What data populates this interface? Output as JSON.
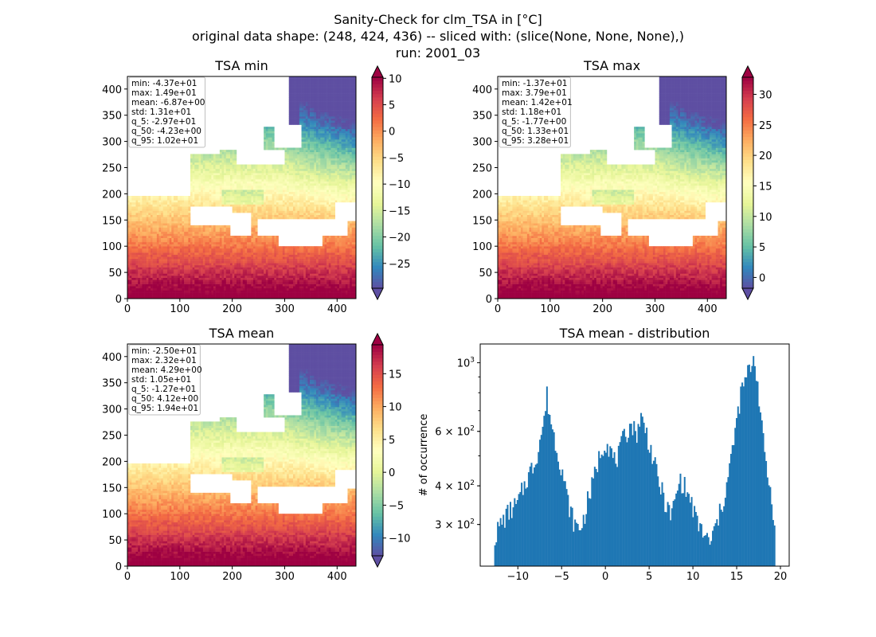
{
  "figure": {
    "title_lines": [
      "Sanity-Check for clm_TSA in [°C]",
      "original data shape: (248, 424, 436) -- sliced with: (slice(None, None, None),)",
      "run: 2001_03"
    ]
  },
  "colors": {
    "histogram_bar": "#1f77b4",
    "stats_box_edge": "#bfbfbf",
    "colormap_spectral_r": [
      "#5e4fa2",
      "#3288bd",
      "#66c2a5",
      "#abdda4",
      "#e6f598",
      "#ffffbf",
      "#fee08b",
      "#fdae61",
      "#f46d43",
      "#d53e4f",
      "#9e0142"
    ]
  },
  "chart_data": [
    {
      "type": "heatmap",
      "title": "TSA min",
      "xlim": [
        0,
        436
      ],
      "ylim": [
        0,
        424
      ],
      "xticks": [
        0,
        100,
        200,
        300,
        400
      ],
      "yticks": [
        0,
        50,
        100,
        150,
        200,
        250,
        300,
        350,
        400
      ],
      "colormap": "Spectral_r",
      "colorbar": {
        "range": [
          -29.7,
          10.2
        ],
        "ticks": [
          10,
          5,
          0,
          -5,
          -10,
          -15,
          -20,
          -25
        ],
        "extend": "both"
      },
      "stats_box": [
        "min: -4.37e+01",
        "max: 1.49e+01",
        "mean: -6.87e+00",
        "std: 1.31e+01",
        "q_5: -2.97e+01",
        "q_50: -4.23e+00",
        "q_95: 1.02e+01"
      ]
    },
    {
      "type": "heatmap",
      "title": "TSA max",
      "xlim": [
        0,
        436
      ],
      "ylim": [
        0,
        424
      ],
      "xticks": [
        0,
        100,
        200,
        300,
        400
      ],
      "yticks": [
        0,
        50,
        100,
        150,
        200,
        250,
        300,
        350,
        400
      ],
      "colormap": "Spectral_r",
      "colorbar": {
        "range": [
          -1.77,
          32.8
        ],
        "ticks": [
          30,
          25,
          20,
          15,
          10,
          5,
          0
        ],
        "extend": "both"
      },
      "stats_box": [
        "min: -1.37e+01",
        "max: 3.79e+01",
        "mean: 1.42e+01",
        "std: 1.18e+01",
        "q_5: -1.77e+00",
        "q_50: 1.33e+01",
        "q_95: 3.28e+01"
      ]
    },
    {
      "type": "heatmap",
      "title": "TSA mean",
      "xlim": [
        0,
        436
      ],
      "ylim": [
        0,
        424
      ],
      "xticks": [
        0,
        100,
        200,
        300,
        400
      ],
      "yticks": [
        0,
        50,
        100,
        150,
        200,
        250,
        300,
        350,
        400
      ],
      "colormap": "Spectral_r",
      "colorbar": {
        "range": [
          -12.7,
          19.4
        ],
        "ticks": [
          15,
          10,
          5,
          0,
          -5,
          -10
        ],
        "extend": "both"
      },
      "stats_box": [
        "min: -2.50e+01",
        "max: 2.32e+01",
        "mean: 4.29e+00",
        "std: 1.05e+01",
        "q_5: -1.27e+01",
        "q_50: 4.12e+00",
        "q_95: 1.94e+01"
      ]
    },
    {
      "type": "bar",
      "subtype": "histogram",
      "title": "TSA mean - distribution",
      "xlabel": "",
      "ylabel": "# of occurrence",
      "xlim": [
        -14.3,
        21.0
      ],
      "ylim": [
        220,
        1150
      ],
      "yscale": "log",
      "xticks": [
        -10,
        -5,
        0,
        5,
        10,
        15,
        20
      ],
      "yticks": [
        {
          "value": 300,
          "label": "3 × 10²",
          "base": "3 × 10",
          "exp": "2"
        },
        {
          "value": 400,
          "label": "4 × 10²",
          "base": "4 × 10",
          "exp": "2"
        },
        {
          "value": 600,
          "label": "6 × 10²",
          "base": "6 × 10",
          "exp": "2"
        },
        {
          "value": 1000,
          "label": "10³",
          "base": "10",
          "exp": "3"
        }
      ],
      "bin_range": [
        -12.7,
        19.4
      ],
      "anchor_x": [
        -12.7,
        -12.0,
        -11.0,
        -10.0,
        -9.0,
        -8.0,
        -7.5,
        -7.0,
        -6.7,
        -6.4,
        -6.0,
        -5.5,
        -5.0,
        -4.5,
        -4.0,
        -3.5,
        -3.0,
        -2.5,
        -2.0,
        -1.5,
        -1.0,
        -0.5,
        0.0,
        0.5,
        1.0,
        1.5,
        2.0,
        2.5,
        3.0,
        3.5,
        4.0,
        4.5,
        5.0,
        5.5,
        6.0,
        6.5,
        7.0,
        7.5,
        8.0,
        8.5,
        9.0,
        9.5,
        10.0,
        10.5,
        11.0,
        11.5,
        12.0,
        12.5,
        13.0,
        13.5,
        14.0,
        14.5,
        15.0,
        15.5,
        16.0,
        16.5,
        17.0,
        17.5,
        18.0,
        18.5,
        19.0,
        19.4
      ],
      "anchor_count": [
        270,
        300,
        330,
        350,
        420,
        480,
        560,
        650,
        790,
        690,
        600,
        520,
        460,
        380,
        330,
        300,
        290,
        310,
        360,
        400,
        460,
        520,
        560,
        530,
        480,
        500,
        560,
        600,
        640,
        580,
        670,
        620,
        550,
        480,
        420,
        380,
        340,
        320,
        360,
        420,
        400,
        370,
        340,
        300,
        290,
        270,
        260,
        290,
        320,
        360,
        420,
        520,
        640,
        800,
        880,
        960,
        1050,
        800,
        560,
        440,
        360,
        300
      ]
    }
  ]
}
